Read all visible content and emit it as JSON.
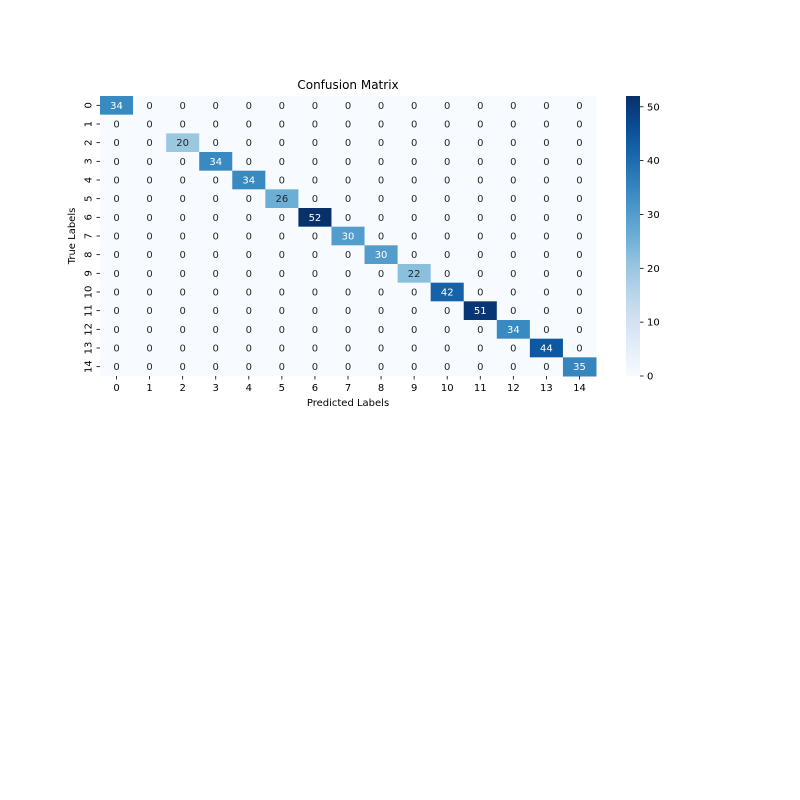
{
  "chart_data": {
    "type": "heatmap",
    "title": "Confusion Matrix",
    "xlabel": "Predicted Labels",
    "ylabel": "True Labels",
    "x_categories": [
      "0",
      "1",
      "2",
      "3",
      "4",
      "5",
      "6",
      "7",
      "8",
      "9",
      "10",
      "11",
      "12",
      "13",
      "14"
    ],
    "y_categories": [
      "0",
      "1",
      "2",
      "3",
      "4",
      "5",
      "6",
      "7",
      "8",
      "9",
      "10",
      "11",
      "12",
      "13",
      "14"
    ],
    "values": [
      [
        34,
        0,
        0,
        0,
        0,
        0,
        0,
        0,
        0,
        0,
        0,
        0,
        0,
        0,
        0
      ],
      [
        0,
        0,
        0,
        0,
        0,
        0,
        0,
        0,
        0,
        0,
        0,
        0,
        0,
        0,
        0
      ],
      [
        0,
        0,
        20,
        0,
        0,
        0,
        0,
        0,
        0,
        0,
        0,
        0,
        0,
        0,
        0
      ],
      [
        0,
        0,
        0,
        34,
        0,
        0,
        0,
        0,
        0,
        0,
        0,
        0,
        0,
        0,
        0
      ],
      [
        0,
        0,
        0,
        0,
        34,
        0,
        0,
        0,
        0,
        0,
        0,
        0,
        0,
        0,
        0
      ],
      [
        0,
        0,
        0,
        0,
        0,
        26,
        0,
        0,
        0,
        0,
        0,
        0,
        0,
        0,
        0
      ],
      [
        0,
        0,
        0,
        0,
        0,
        0,
        52,
        0,
        0,
        0,
        0,
        0,
        0,
        0,
        0
      ],
      [
        0,
        0,
        0,
        0,
        0,
        0,
        0,
        30,
        0,
        0,
        0,
        0,
        0,
        0,
        0
      ],
      [
        0,
        0,
        0,
        0,
        0,
        0,
        0,
        0,
        30,
        0,
        0,
        0,
        0,
        0,
        0
      ],
      [
        0,
        0,
        0,
        0,
        0,
        0,
        0,
        0,
        0,
        22,
        0,
        0,
        0,
        0,
        0
      ],
      [
        0,
        0,
        0,
        0,
        0,
        0,
        0,
        0,
        0,
        0,
        42,
        0,
        0,
        0,
        0
      ],
      [
        0,
        0,
        0,
        0,
        0,
        0,
        0,
        0,
        0,
        0,
        0,
        51,
        0,
        0,
        0
      ],
      [
        0,
        0,
        0,
        0,
        0,
        0,
        0,
        0,
        0,
        0,
        0,
        0,
        34,
        0,
        0
      ],
      [
        0,
        0,
        0,
        0,
        0,
        0,
        0,
        0,
        0,
        0,
        0,
        0,
        0,
        44,
        0
      ],
      [
        0,
        0,
        0,
        0,
        0,
        0,
        0,
        0,
        0,
        0,
        0,
        0,
        0,
        0,
        35
      ]
    ],
    "colorbar": {
      "colormap": "Blues",
      "range": [
        0,
        52
      ],
      "ticks": [
        0,
        10,
        20,
        30,
        40,
        50
      ]
    },
    "colors": {
      "low": "#f7fbff",
      "high": "#08306b"
    }
  }
}
